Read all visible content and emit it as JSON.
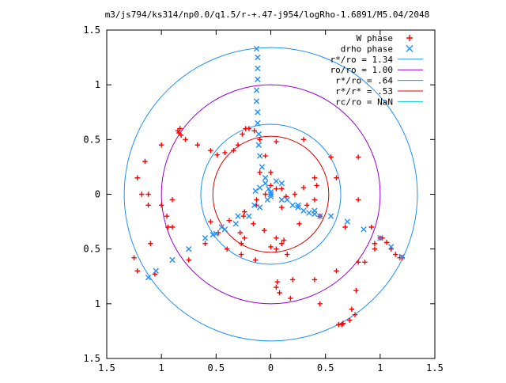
{
  "chart_data": {
    "type": "scatter",
    "title": "m3/js794/ks314/np0.0/q1.5/r-+.47-j954/logRho-1.6891/M5.04/2048",
    "xlabel": "",
    "ylabel": "",
    "xlim": [
      -1.5,
      1.5
    ],
    "ylim": [
      -1.5,
      1.5
    ],
    "x_ticks": [
      -1.5,
      -1,
      -0.5,
      0,
      0.5,
      1,
      1.5
    ],
    "y_ticks": [
      -1.5,
      -1,
      -0.5,
      0,
      0.5,
      1,
      1.5
    ],
    "x_tick_labels": [
      "1.5",
      "1",
      "0.5",
      "0",
      "0.5",
      "1",
      "1.5"
    ],
    "y_tick_labels": [
      "1.5",
      "1",
      "0.5",
      "0",
      "0.5",
      "1",
      "1.5"
    ],
    "grid": false,
    "legend_position": "top-right",
    "series": [
      {
        "name": "W phase",
        "marker": "plus",
        "color": "#ff0000",
        "x": [
          -0.28,
          -0.24,
          -0.27,
          -0.16,
          -0.06,
          0.12,
          0.26,
          0.4,
          0.42,
          0.4,
          0.3,
          0.14,
          0.05,
          -0.05,
          -0.13,
          -0.24,
          -0.38,
          -0.55,
          -0.9,
          -1.12,
          -1.0,
          -0.95,
          -0.94,
          -1.1,
          -1.25,
          -1.22,
          -1.06,
          -0.75,
          -0.48,
          -0.25,
          -0.13,
          -0.1,
          0.05,
          0.3,
          0.6,
          0.8,
          0.92,
          0.86,
          0.78,
          0.74,
          0.77,
          0.72,
          0.62,
          0.66,
          0.65,
          0.45,
          0.18,
          0.08,
          0.05,
          0.06,
          0.2,
          0.4,
          0.6,
          0.8,
          0.95,
          1.0,
          1.02,
          1.06,
          1.1,
          1.14,
          1.18,
          1.2,
          0.95,
          0.68,
          0.45,
          0.33,
          0.22,
          0.1,
          0.0,
          0.0,
          -0.05,
          -0.1,
          -0.15,
          -0.2,
          -0.23,
          -0.26,
          -0.3,
          -0.34,
          -0.42,
          -0.49,
          -0.55,
          -0.67,
          -0.78,
          -0.82,
          -0.84,
          -0.85,
          -0.83,
          -1.0,
          -1.15,
          -1.22,
          -1.18,
          -1.12,
          -0.9,
          -0.6,
          -0.4,
          -0.27,
          -0.14,
          0.15,
          0.05,
          0.0,
          0.1,
          0.05,
          0.1,
          0.55,
          0.8
        ],
        "y": [
          -0.35,
          -0.4,
          -0.45,
          -0.27,
          -0.33,
          -0.42,
          -0.27,
          -0.05,
          0.08,
          0.15,
          0.06,
          -0.02,
          0.05,
          0.0,
          -0.1,
          -0.16,
          -0.24,
          -0.25,
          -0.05,
          0.0,
          -0.1,
          -0.2,
          -0.3,
          -0.45,
          -0.58,
          -0.7,
          -0.73,
          -0.6,
          -0.35,
          -0.2,
          -0.05,
          0.2,
          0.48,
          0.5,
          0.15,
          -0.05,
          -0.3,
          -0.62,
          -0.88,
          -1.05,
          -1.1,
          -1.15,
          -1.19,
          -1.18,
          -1.19,
          -1.0,
          -0.95,
          -0.9,
          -0.85,
          -0.8,
          -0.78,
          -0.78,
          -0.7,
          -0.62,
          -0.5,
          -0.4,
          -0.4,
          -0.44,
          -0.5,
          -0.55,
          -0.58,
          -0.58,
          -0.45,
          -0.3,
          -0.2,
          -0.1,
          0.0,
          0.05,
          0.08,
          0.2,
          0.35,
          0.5,
          0.58,
          0.6,
          0.6,
          0.55,
          0.45,
          0.4,
          0.38,
          0.36,
          0.4,
          0.45,
          0.5,
          0.54,
          0.56,
          0.58,
          0.6,
          0.45,
          0.3,
          0.15,
          0.0,
          -0.1,
          -0.3,
          -0.45,
          -0.5,
          -0.55,
          -0.6,
          -0.55,
          -0.5,
          -0.48,
          -0.45,
          -0.4,
          -0.12,
          0.34,
          0.34
        ]
      },
      {
        "name": "drho phase",
        "marker": "cross",
        "color": "#1e90ff",
        "x": [
          -0.13,
          -0.12,
          -0.12,
          -0.12,
          -0.13,
          -0.13,
          -0.12,
          -0.12,
          -0.11,
          -0.11,
          -0.1,
          -0.08,
          -0.05,
          -0.02,
          0.0,
          0.0,
          -0.15,
          -0.3,
          -0.45,
          -0.6,
          -0.75,
          -0.9,
          -1.05,
          -1.12,
          0.0,
          0.1,
          0.25,
          0.4,
          0.55,
          0.7,
          0.85,
          1.0,
          1.1,
          1.2,
          0.0,
          -0.03,
          -0.1,
          -0.2,
          -0.32,
          -0.42,
          -0.5,
          -0.53,
          -0.14,
          -0.1,
          -0.05,
          0.05,
          0.1,
          0.15,
          0.2,
          0.25,
          0.3,
          0.35,
          0.4,
          0.45
        ],
        "y": [
          1.33,
          1.25,
          1.15,
          1.05,
          0.95,
          0.85,
          0.75,
          0.65,
          0.55,
          0.45,
          0.35,
          0.25,
          0.15,
          0.05,
          0.0,
          -0.02,
          -0.1,
          -0.2,
          -0.3,
          -0.4,
          -0.5,
          -0.6,
          -0.7,
          -0.76,
          0.0,
          -0.05,
          -0.1,
          -0.15,
          -0.2,
          -0.25,
          -0.32,
          -0.4,
          -0.48,
          -0.57,
          0.02,
          -0.05,
          -0.12,
          -0.2,
          -0.27,
          -0.32,
          -0.36,
          -0.37,
          0.03,
          0.06,
          0.1,
          0.12,
          0.1,
          -0.05,
          -0.1,
          -0.12,
          -0.15,
          -0.17,
          -0.18,
          -0.2
        ]
      }
    ],
    "circles": [
      {
        "label": "r*/ro = 1.34",
        "radius": 1.34,
        "color": "#1e90ff"
      },
      {
        "label": "ro/ro = 1.00",
        "radius": 1.0,
        "color": "#9400d3"
      },
      {
        "label": "r*/ro = .64",
        "radius": 0.64,
        "color": "#1e90ff"
      },
      {
        "label": "r*/r* = .53",
        "radius": 0.53,
        "color": "#dd0000"
      },
      {
        "label": "rc/ro = NaN",
        "radius": null,
        "color": "#00ced1"
      }
    ]
  }
}
